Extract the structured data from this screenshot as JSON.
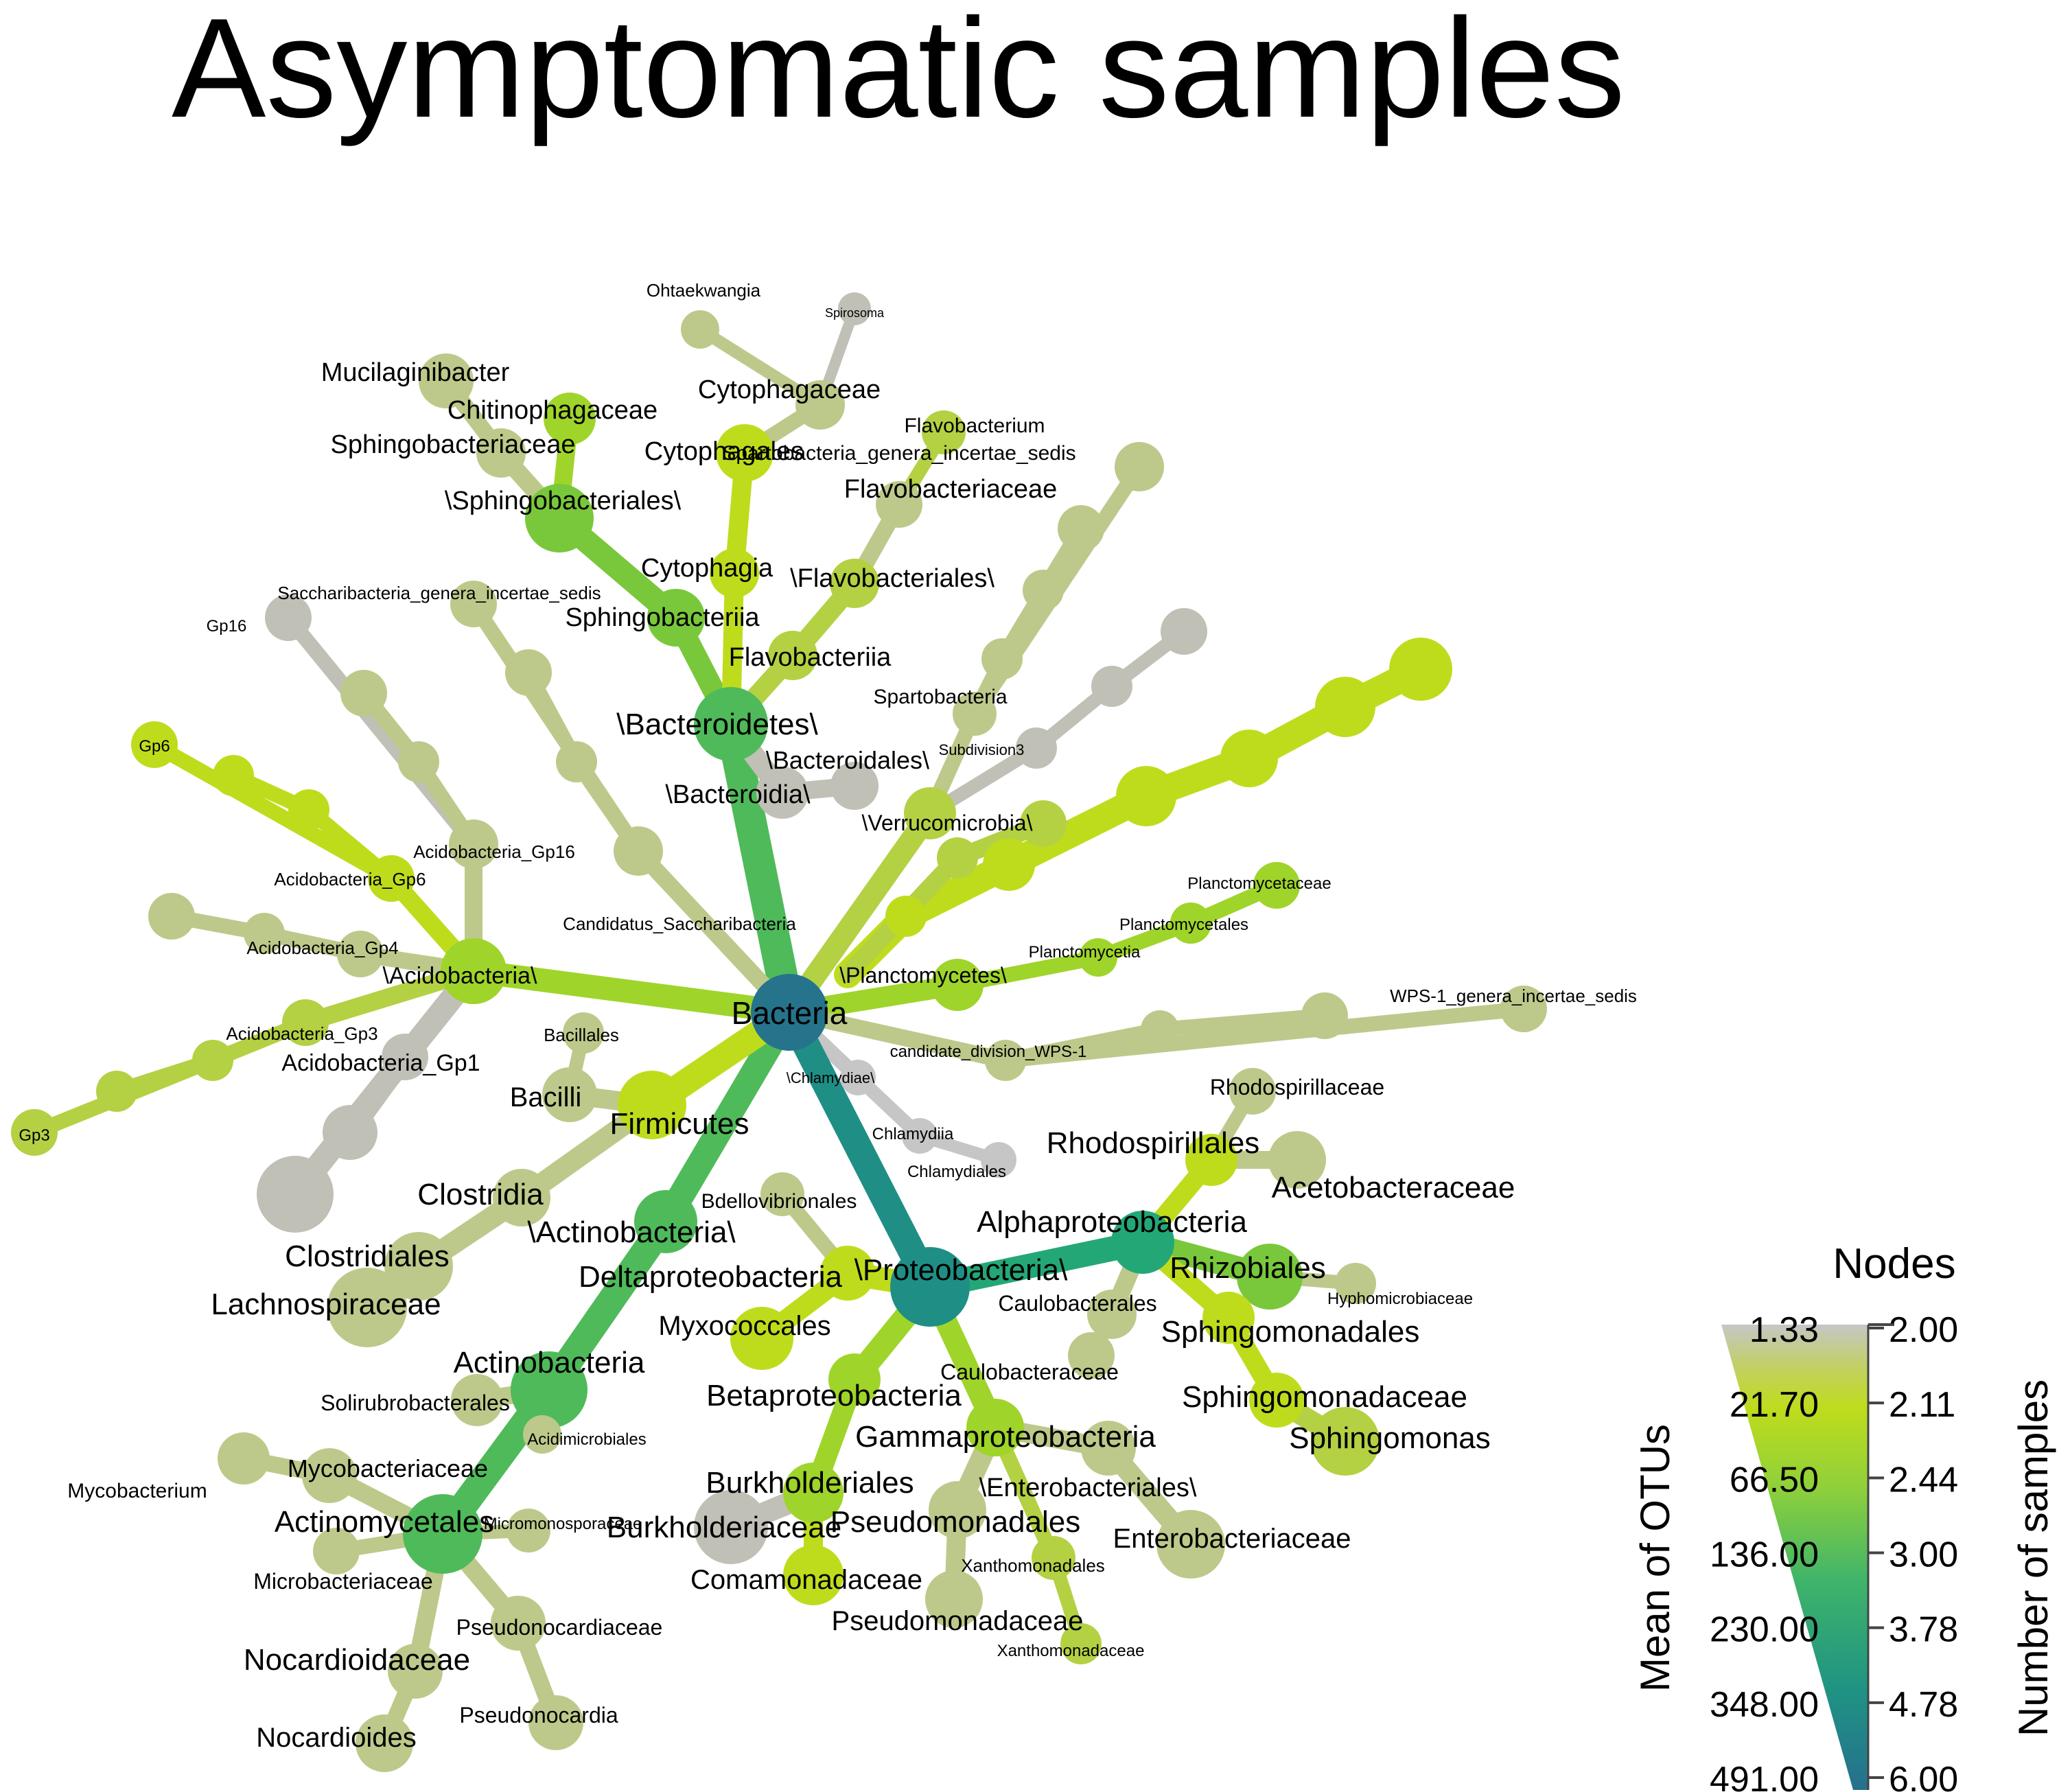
{
  "title": "Asymptomatic samples",
  "colors": {
    "grey": "#c1c0b6",
    "khaki": "#bdc98a",
    "olive": "#b3d143",
    "yellowgreen": "#bfdc1c",
    "lime": "#9fd42a",
    "green": "#79c83b",
    "midgreen": "#4fba5a",
    "teal": "#24a777",
    "darkteal": "#1f8f86",
    "root": "#25748c",
    "lightgrey": "#c6c6c6"
  },
  "nodes": [
    {
      "id": "bacteria",
      "label": "Bacteria",
      "color": "root"
    },
    {
      "id": "bacteroidetes",
      "label": "\\Bacteroidetes\\",
      "color": "midgreen"
    },
    {
      "id": "bacteroidia",
      "label": "\\Bacteroidia\\",
      "color": "grey"
    },
    {
      "id": "bacteroidales",
      "label": "\\Bacteroidales\\",
      "color": "grey"
    },
    {
      "id": "sphingobacteriia",
      "label": "Sphingobacteriia",
      "color": "green"
    },
    {
      "id": "sphingobacteriales",
      "label": "\\Sphingobacteriales\\",
      "color": "green"
    },
    {
      "id": "sphingobacteriaceae",
      "label": "Sphingobacteriaceae",
      "color": "khaki"
    },
    {
      "id": "mucilaginibacter",
      "label": "Mucilaginibacter",
      "color": "khaki"
    },
    {
      "id": "chitinophagaceae",
      "label": "Chitinophagaceae",
      "color": "lime"
    },
    {
      "id": "cytophagia",
      "label": "Cytophagia",
      "color": "yellowgreen"
    },
    {
      "id": "cytophagales",
      "label": "Cytophagales",
      "color": "yellowgreen"
    },
    {
      "id": "cytophagaceae",
      "label": "Cytophagaceae",
      "color": "khaki"
    },
    {
      "id": "ohtaekwangia",
      "label": "Ohtaekwangia",
      "color": "khaki"
    },
    {
      "id": "spirosoma",
      "label": "Spirosoma",
      "color": "grey"
    },
    {
      "id": "flavobacteriia",
      "label": "Flavobacteriia",
      "color": "olive"
    },
    {
      "id": "flavobacteriales",
      "label": "\\Flavobacteriales\\",
      "color": "olive"
    },
    {
      "id": "flavobacteriaceae",
      "label": "Flavobacteriaceae",
      "color": "khaki"
    },
    {
      "id": "flavobacterium",
      "label": "Flavobacterium",
      "color": "olive"
    },
    {
      "id": "verrucomicrobia",
      "label": "\\Verrucomicrobia\\",
      "color": "olive"
    },
    {
      "id": "spartobacteria",
      "label": "Spartobacteria",
      "color": "khaki"
    },
    {
      "id": "spartobacteria_g",
      "label": "Spartobacteria_genera_incertae_sedis",
      "color": "khaki"
    },
    {
      "id": "subdivision3",
      "label": "Subdivision3",
      "color": "grey"
    },
    {
      "id": "planctomycetes",
      "label": "\\Planctomycetes\\",
      "color": "lime"
    },
    {
      "id": "planctomycetia",
      "label": "Planctomycetia",
      "color": "lime"
    },
    {
      "id": "planctomycetales",
      "label": "Planctomycetales",
      "color": "lime"
    },
    {
      "id": "planctomycetaceae",
      "label": "Planctomycetaceae",
      "color": "lime"
    },
    {
      "id": "wps1",
      "label": "candidate_division_WPS-1",
      "color": "khaki"
    },
    {
      "id": "wps1_g",
      "label": "WPS-1_genera_incertae_sedis",
      "color": "khaki"
    },
    {
      "id": "chlamydiae",
      "label": "\\Chlamydiae\\",
      "color": "lightgrey"
    },
    {
      "id": "chlamydiia",
      "label": "Chlamydiia",
      "color": "lightgrey"
    },
    {
      "id": "chlamydiales",
      "label": "Chlamydiales",
      "color": "lightgrey"
    },
    {
      "id": "proteobacteria",
      "label": "\\Proteobacteria\\",
      "color": "darkteal"
    },
    {
      "id": "alphaproteobacteria",
      "label": "Alphaproteobacteria",
      "color": "teal"
    },
    {
      "id": "rhodospirillales",
      "label": "Rhodospirillales",
      "color": "yellowgreen"
    },
    {
      "id": "rhodospirillaceae",
      "label": "Rhodospirillaceae",
      "color": "khaki"
    },
    {
      "id": "acetobacteraceae",
      "label": "Acetobacteraceae",
      "color": "khaki"
    },
    {
      "id": "rhizobiales",
      "label": "Rhizobiales",
      "color": "green"
    },
    {
      "id": "hyphomicrobiaceae",
      "label": "Hyphomicrobiaceae",
      "color": "khaki"
    },
    {
      "id": "caulobacterales",
      "label": "Caulobacterales",
      "color": "khaki"
    },
    {
      "id": "caulobacteraceae",
      "label": "Caulobacteraceae",
      "color": "khaki"
    },
    {
      "id": "sphingomonadales",
      "label": "Sphingomonadales",
      "color": "yellowgreen"
    },
    {
      "id": "sphingomonadaceae",
      "label": "Sphingomonadaceae",
      "color": "yellowgreen"
    },
    {
      "id": "sphingomonas",
      "label": "Sphingomonas",
      "color": "olive"
    },
    {
      "id": "betaproteobacteria",
      "label": "Betaproteobacteria",
      "color": "lime"
    },
    {
      "id": "burkholderiales",
      "label": "Burkholderiales",
      "color": "lime"
    },
    {
      "id": "burkholderiaceae",
      "label": "Burkholderiaceae",
      "color": "grey"
    },
    {
      "id": "comamonadaceae",
      "label": "Comamonadaceae",
      "color": "yellowgreen"
    },
    {
      "id": "gammaproteobacteria",
      "label": "Gammaproteobacteria",
      "color": "lime"
    },
    {
      "id": "enterobacteriales",
      "label": "\\Enterobacteriales\\",
      "color": "khaki"
    },
    {
      "id": "enterobacteriaceae",
      "label": "Enterobacteriaceae",
      "color": "khaki"
    },
    {
      "id": "pseudomonadales",
      "label": "Pseudomonadales",
      "color": "khaki"
    },
    {
      "id": "pseudomonadaceae",
      "label": "Pseudomonadaceae",
      "color": "khaki"
    },
    {
      "id": "xanthomonadales",
      "label": "Xanthomonadales",
      "color": "olive"
    },
    {
      "id": "xanthomonadaceae",
      "label": "Xanthomonadaceae",
      "color": "olive"
    },
    {
      "id": "deltaproteobacteria",
      "label": "Deltaproteobacteria",
      "color": "yellowgreen"
    },
    {
      "id": "bdellovibrionales",
      "label": "Bdellovibrionales",
      "color": "khaki"
    },
    {
      "id": "myxococcales",
      "label": "Myxococcales",
      "color": "yellowgreen"
    },
    {
      "id": "actinobacteria_p",
      "label": "\\Actinobacteria\\",
      "color": "midgreen"
    },
    {
      "id": "actinobacteria",
      "label": "Actinobacteria",
      "color": "midgreen"
    },
    {
      "id": "solirubrobacterales",
      "label": "Solirubrobacterales",
      "color": "khaki"
    },
    {
      "id": "acidimicrobiales",
      "label": "Acidimicrobiales",
      "color": "khaki"
    },
    {
      "id": "actinomycetales",
      "label": "Actinomycetales",
      "color": "midgreen"
    },
    {
      "id": "mycobacteriaceae",
      "label": "Mycobacteriaceae",
      "color": "khaki"
    },
    {
      "id": "mycobacterium",
      "label": "Mycobacterium",
      "color": "khaki"
    },
    {
      "id": "micromonosporaceae",
      "label": "Micromonosporaceae",
      "color": "khaki"
    },
    {
      "id": "microbacteriaceae",
      "label": "Microbacteriaceae",
      "color": "khaki"
    },
    {
      "id": "pseudonocardiaceae",
      "label": "Pseudonocardiaceae",
      "color": "khaki"
    },
    {
      "id": "pseudonocardia",
      "label": "Pseudonocardia",
      "color": "khaki"
    },
    {
      "id": "nocardioidaceae",
      "label": "Nocardioidaceae",
      "color": "khaki"
    },
    {
      "id": "nocardioides",
      "label": "Nocardioides",
      "color": "khaki"
    },
    {
      "id": "firmicutes",
      "label": "Firmicutes",
      "color": "yellowgreen"
    },
    {
      "id": "bacilli",
      "label": "Bacilli",
      "color": "khaki"
    },
    {
      "id": "bacillales",
      "label": "Bacillales",
      "color": "khaki"
    },
    {
      "id": "clostridia",
      "label": "Clostridia",
      "color": "khaki"
    },
    {
      "id": "clostridiales",
      "label": "Clostridiales",
      "color": "khaki"
    },
    {
      "id": "lachnospiraceae",
      "label": "Lachnospiraceae",
      "color": "khaki"
    },
    {
      "id": "acidobacteria",
      "label": "\\Acidobacteria\\",
      "color": "lime"
    },
    {
      "id": "acidobacteria_gp1",
      "label": "Acidobacteria_Gp1",
      "color": "grey"
    },
    {
      "id": "acidobacteria_gp3",
      "label": "Acidobacteria_Gp3",
      "color": "olive"
    },
    {
      "id": "gp3",
      "label": "Gp3",
      "color": "olive"
    },
    {
      "id": "acidobacteria_gp4",
      "label": "Acidobacteria_Gp4",
      "color": "khaki"
    },
    {
      "id": "acidobacteria_gp6",
      "label": "Acidobacteria_Gp6",
      "color": "yellowgreen"
    },
    {
      "id": "gp6",
      "label": "Gp6",
      "color": "yellowgreen"
    },
    {
      "id": "acidobacteria_gp16",
      "label": "Acidobacteria_Gp16",
      "color": "khaki"
    },
    {
      "id": "gp16",
      "label": "Gp16",
      "color": "grey"
    },
    {
      "id": "saccharibacteria",
      "label": "Candidatus_Saccharibacteria",
      "color": "khaki"
    },
    {
      "id": "saccharibacteria_g",
      "label": "Saccharibacteria_genera_incertae_sedis",
      "color": "khaki"
    }
  ],
  "legend": {
    "title": "Nodes",
    "left_axis_label": "Mean of OTUs",
    "right_axis_label": "Number of samples",
    "left_ticks": [
      "1.33",
      "21.70",
      "66.50",
      "136.00",
      "230.00",
      "348.00",
      "491.00"
    ],
    "right_ticks": [
      "2.00",
      "2.11",
      "2.44",
      "3.00",
      "3.78",
      "4.78",
      "6.00"
    ]
  }
}
